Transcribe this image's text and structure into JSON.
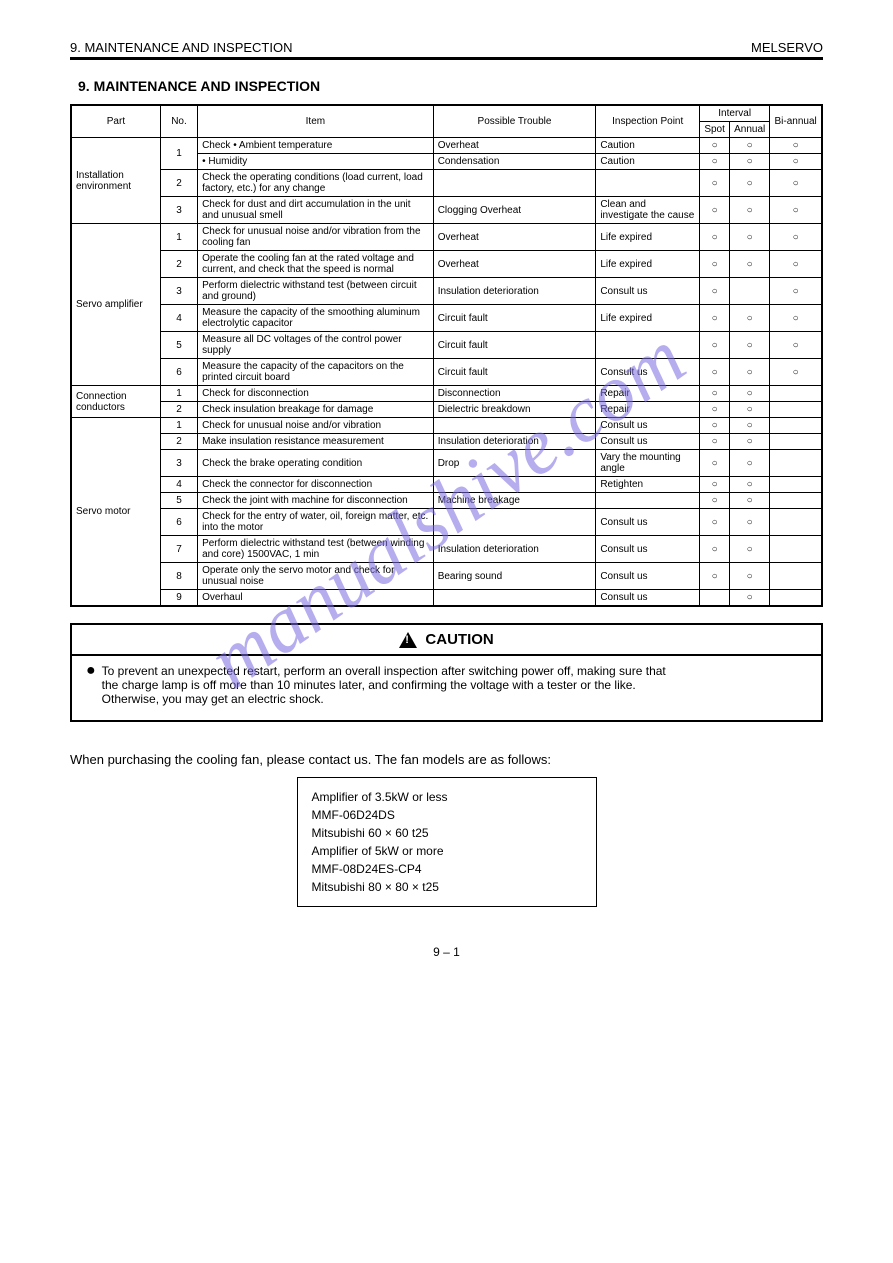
{
  "header": {
    "left": "9. MAINTENANCE AND INSPECTION",
    "right": "MELSERVO"
  },
  "section_title": "9. MAINTENANCE AND INSPECTION",
  "table": {
    "headers": {
      "part": "Part",
      "no": "No.",
      "item": "Item",
      "trouble": "Possible Trouble",
      "point": "Inspection Point",
      "interval": "Interval",
      "spot": "Spot",
      "annual": "Annual",
      "biannual": "Bi-annual"
    },
    "rows": [
      {
        "part": "Installation environment",
        "no": "1",
        "item": "Check • Ambient temperature",
        "trouble": "Overheat",
        "point": "Caution",
        "sp": "o",
        "an": "o",
        "bi": "o"
      },
      {
        "part": "",
        "no": "",
        "item": "• Humidity",
        "trouble": "Condensation",
        "point": "Caution",
        "sp": "o",
        "an": "o",
        "bi": "o"
      },
      {
        "part": "",
        "no": "2",
        "item": "Check the operating conditions (load current, load factory, etc.) for any change",
        "trouble": "",
        "point": "",
        "sp": "o",
        "an": "o",
        "bi": "o"
      },
      {
        "part": "",
        "no": "3",
        "item": "Check for dust and dirt accumulation in the unit and unusual smell",
        "trouble": "Clogging Overheat",
        "point": "Clean and investigate the cause",
        "sp": "o",
        "an": "o",
        "bi": "o"
      },
      {
        "part": "Servo amplifier",
        "no": "1",
        "item": "Check for unusual noise and/or vibration from the cooling fan",
        "trouble": "Overheat",
        "point": "Life expired",
        "sp": "o",
        "an": "o",
        "bi": "o"
      },
      {
        "part": "",
        "no": "2",
        "item": "Operate the cooling fan at the rated voltage and current, and check that the speed is normal",
        "trouble": "Overheat",
        "point": "Life expired",
        "sp": "o",
        "an": "o",
        "bi": "o"
      },
      {
        "part": "",
        "no": "3",
        "item": "Perform dielectric withstand test (between circuit and ground)",
        "trouble": "Insulation deterioration",
        "point": "Consult us",
        "sp": "o",
        "an": "",
        "bi": "o"
      },
      {
        "part": "",
        "no": "4",
        "item": "Measure the capacity of the smoothing aluminum electrolytic capacitor",
        "trouble": "Circuit fault",
        "point": "Life expired",
        "sp": "o",
        "an": "o",
        "bi": "o"
      },
      {
        "part": "",
        "no": "5",
        "item": "Measure all DC voltages of the control power supply",
        "trouble": "Circuit fault",
        "point": "",
        "sp": "o",
        "an": "o",
        "bi": "o"
      },
      {
        "part": "",
        "no": "6",
        "item": "Measure the capacity of the capacitors on the printed circuit board",
        "trouble": "Circuit fault",
        "point": "Consult us",
        "sp": "o",
        "an": "o",
        "bi": "o"
      },
      {
        "part": "Connection conductors",
        "no": "1",
        "item": "Check for disconnection",
        "trouble": "Disconnection",
        "point": "Repair",
        "sp": "o",
        "an": "o",
        "bi": ""
      },
      {
        "part": "",
        "no": "2",
        "item": "Check insulation breakage for damage",
        "trouble": "Dielectric breakdown",
        "point": "Repair",
        "sp": "o",
        "an": "o",
        "bi": ""
      },
      {
        "part": "Servo motor",
        "no": "1",
        "item": "Check for unusual noise and/or vibration",
        "trouble": "",
        "point": "Consult us",
        "sp": "o",
        "an": "o",
        "bi": ""
      },
      {
        "part": "",
        "no": "2",
        "item": "Make insulation resistance measurement",
        "trouble": "Insulation deterioration",
        "point": "Consult us",
        "sp": "o",
        "an": "o",
        "bi": ""
      },
      {
        "part": "",
        "no": "3",
        "item": "Check the brake operating condition",
        "trouble": "Drop",
        "point": "Vary the mounting angle",
        "sp": "o",
        "an": "o",
        "bi": ""
      },
      {
        "part": "",
        "no": "4",
        "item": "Check the connector for disconnection",
        "trouble": "",
        "point": "Retighten",
        "sp": "o",
        "an": "o",
        "bi": ""
      },
      {
        "part": "",
        "no": "5",
        "item": "Check the joint with machine for disconnection",
        "trouble": "Machine breakage",
        "point": "",
        "sp": "o",
        "an": "o",
        "bi": ""
      },
      {
        "part": "",
        "no": "6",
        "item": "Check for the entry of water, oil, foreign matter, etc. into the motor",
        "trouble": "",
        "point": "Consult us",
        "sp": "o",
        "an": "o",
        "bi": ""
      },
      {
        "part": "",
        "no": "7",
        "item": "Perform dielectric withstand test (between winding and core) 1500VAC, 1 min",
        "trouble": "Insulation deterioration",
        "point": "Consult us",
        "sp": "o",
        "an": "o",
        "bi": ""
      },
      {
        "part": "",
        "no": "8",
        "item": "Operate only the servo motor and check for unusual noise",
        "trouble": "Bearing sound",
        "point": "Consult us",
        "sp": "o",
        "an": "o",
        "bi": ""
      },
      {
        "part": "",
        "no": "9",
        "item": "Overhaul",
        "trouble": "",
        "point": "Consult us",
        "sp": "",
        "an": "o",
        "bi": ""
      }
    ]
  },
  "caution": {
    "head": "CAUTION",
    "body_lines": [
      "To prevent an unexpected restart, perform an overall inspection after switching power off, making sure that",
      "the charge lamp is off more than 10 minutes later, and confirming the voltage with a tester or the like.",
      "Otherwise, you may get an electric shock."
    ]
  },
  "purchase": {
    "intro": "When purchasing the cooling fan, please contact us. The fan models are as follows:",
    "box": {
      "l1": "Amplifier of 3.5kW or less",
      "l2": "MMF-06D24DS",
      "l3": "Mitsubishi 60 × 60 t25",
      "l4": "Amplifier of 5kW or more",
      "l5": "MMF-08D24ES-CP4",
      "l6": "Mitsubishi 80 × 80 × t25"
    }
  },
  "page_number": "9 – 1",
  "watermark": "manualshive.com"
}
